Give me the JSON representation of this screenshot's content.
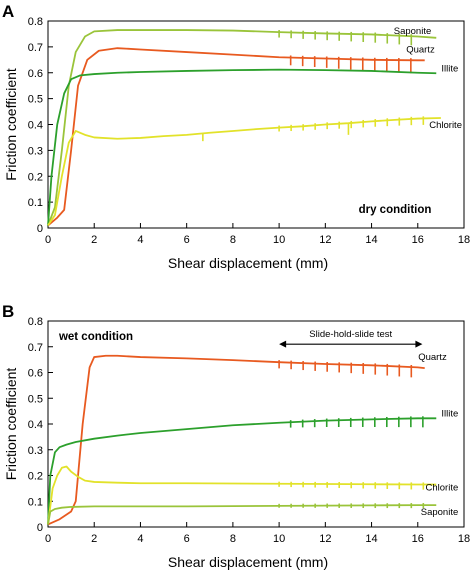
{
  "chart_data": [
    {
      "type": "line",
      "panel": "A",
      "condition_label": "dry condition",
      "xlabel": "Shear displacement (mm)",
      "ylabel": "Friction coefficient",
      "xlim": [
        0,
        18
      ],
      "ylim": [
        0,
        0.8
      ],
      "xticks": [
        "0",
        "2",
        "4",
        "6",
        "8",
        "10",
        "12",
        "14",
        "16",
        "18"
      ],
      "yticks": [
        "0",
        "0.1",
        "0.2",
        "0.3",
        "0.4",
        "0.5",
        "0.6",
        "0.7",
        "0.8"
      ],
      "grid": false,
      "series": [
        {
          "name": "Saponite",
          "color": "#9ac43a",
          "x": [
            0,
            0.3,
            0.6,
            0.9,
            1.2,
            1.6,
            2.0,
            3.0,
            4.0,
            6.0,
            8.0,
            10.0,
            12.0,
            14.0,
            16.0,
            16.8
          ],
          "y": [
            0.01,
            0.08,
            0.3,
            0.55,
            0.68,
            0.74,
            0.76,
            0.765,
            0.765,
            0.765,
            0.763,
            0.757,
            0.752,
            0.748,
            0.74,
            0.735
          ],
          "shs": {
            "start": 10.0,
            "count": 12,
            "step": 0.52,
            "drop": 0.035
          }
        },
        {
          "name": "Quartz",
          "color": "#e85a20",
          "x": [
            0,
            0.4,
            0.7,
            1.0,
            1.3,
            1.7,
            2.2,
            3.0,
            4.0,
            6.0,
            8.0,
            10.0,
            12.0,
            14.0,
            16.0,
            16.3
          ],
          "y": [
            0.01,
            0.04,
            0.07,
            0.3,
            0.55,
            0.65,
            0.685,
            0.695,
            0.69,
            0.68,
            0.67,
            0.66,
            0.655,
            0.65,
            0.648,
            0.648
          ],
          "shs": {
            "start": 10.5,
            "count": 11,
            "step": 0.52,
            "drop": 0.05
          }
        },
        {
          "name": "Illite",
          "color": "#2ca02c",
          "x": [
            0,
            0.15,
            0.4,
            0.7,
            1.0,
            1.4,
            2.0,
            3.0,
            4.0,
            6.0,
            8.0,
            10.0,
            12.0,
            14.0,
            16.0,
            16.8
          ],
          "y": [
            0.01,
            0.2,
            0.4,
            0.52,
            0.575,
            0.59,
            0.595,
            0.6,
            0.603,
            0.607,
            0.61,
            0.612,
            0.61,
            0.607,
            0.6,
            0.598
          ],
          "shs": null
        },
        {
          "name": "Chlorite",
          "color": "#e2e22a",
          "x": [
            0,
            0.3,
            0.6,
            0.9,
            1.2,
            1.6,
            2.0,
            3.0,
            4.0,
            5.0,
            6.0,
            7.0,
            8.0,
            9.0,
            10.0,
            11.0,
            12.0,
            13.0,
            14.0,
            15.0,
            16.0,
            17.0
          ],
          "y": [
            0.01,
            0.05,
            0.2,
            0.33,
            0.375,
            0.36,
            0.35,
            0.345,
            0.348,
            0.355,
            0.36,
            0.368,
            0.375,
            0.382,
            0.388,
            0.393,
            0.4,
            0.405,
            0.412,
            0.418,
            0.423,
            0.425
          ],
          "shs": {
            "start": 10.0,
            "count": 13,
            "step": 0.52,
            "drop": 0.025
          },
          "dips": [
            {
              "x": 6.7,
              "drop": 0.03
            },
            {
              "x": 13.0,
              "drop": 0.045
            }
          ]
        }
      ]
    },
    {
      "type": "line",
      "panel": "B",
      "condition_label": "wet condition",
      "annotation": "Slide-hold-slide test",
      "annotation_range": [
        10,
        16.2
      ],
      "annotation_y": 0.71,
      "xlabel": "Shear displacement (mm)",
      "ylabel": "Friction coefficient",
      "xlim": [
        0,
        18
      ],
      "ylim": [
        0,
        0.8
      ],
      "xticks": [
        "0",
        "2",
        "4",
        "6",
        "8",
        "10",
        "12",
        "14",
        "16",
        "18"
      ],
      "yticks": [
        "0",
        "0.1",
        "0.2",
        "0.3",
        "0.4",
        "0.5",
        "0.6",
        "0.7",
        "0.8"
      ],
      "grid": false,
      "series": [
        {
          "name": "Quartz",
          "color": "#e85a20",
          "x": [
            0,
            0.5,
            1.0,
            1.2,
            1.5,
            1.8,
            2.0,
            2.5,
            3.0,
            4.0,
            6.0,
            8.0,
            10.0,
            12.0,
            14.0,
            16.0,
            16.3
          ],
          "y": [
            0.01,
            0.03,
            0.06,
            0.1,
            0.4,
            0.62,
            0.66,
            0.665,
            0.665,
            0.66,
            0.655,
            0.648,
            0.64,
            0.633,
            0.628,
            0.62,
            0.617
          ],
          "shs": {
            "start": 10.0,
            "count": 12,
            "step": 0.52,
            "drop": 0.04
          }
        },
        {
          "name": "Illite",
          "color": "#2ca02c",
          "x": [
            0,
            0.1,
            0.3,
            0.5,
            0.8,
            1.2,
            2.0,
            3.0,
            4.0,
            6.0,
            8.0,
            10.0,
            12.0,
            14.0,
            16.0,
            16.8
          ],
          "y": [
            0.01,
            0.2,
            0.29,
            0.31,
            0.32,
            0.33,
            0.343,
            0.355,
            0.365,
            0.38,
            0.395,
            0.405,
            0.413,
            0.418,
            0.422,
            0.422
          ],
          "shs": {
            "start": 10.5,
            "count": 12,
            "step": 0.52,
            "drop": 0.035
          }
        },
        {
          "name": "Chlorite",
          "color": "#e2e22a",
          "x": [
            0,
            0.2,
            0.4,
            0.6,
            0.8,
            1.0,
            1.3,
            1.6,
            2.0,
            3.0,
            4.0,
            6.0,
            8.0,
            10.0,
            12.0,
            14.0,
            16.0,
            16.8
          ],
          "y": [
            0.01,
            0.15,
            0.2,
            0.23,
            0.235,
            0.215,
            0.195,
            0.18,
            0.175,
            0.172,
            0.17,
            0.17,
            0.169,
            0.168,
            0.167,
            0.166,
            0.165,
            0.165
          ],
          "shs": {
            "start": 10.0,
            "count": 13,
            "step": 0.52,
            "drop": 0.02
          }
        },
        {
          "name": "Saponite",
          "color": "#9ac43a",
          "x": [
            0,
            0.1,
            0.3,
            0.6,
            1.0,
            2.0,
            4.0,
            6.0,
            8.0,
            10.0,
            12.0,
            14.0,
            16.0,
            16.8
          ],
          "y": [
            0.01,
            0.06,
            0.07,
            0.075,
            0.078,
            0.08,
            0.08,
            0.08,
            0.081,
            0.082,
            0.083,
            0.084,
            0.085,
            0.085
          ],
          "shs": {
            "start": 10.0,
            "count": 13,
            "step": 0.52,
            "drop": 0.012
          }
        }
      ]
    }
  ]
}
